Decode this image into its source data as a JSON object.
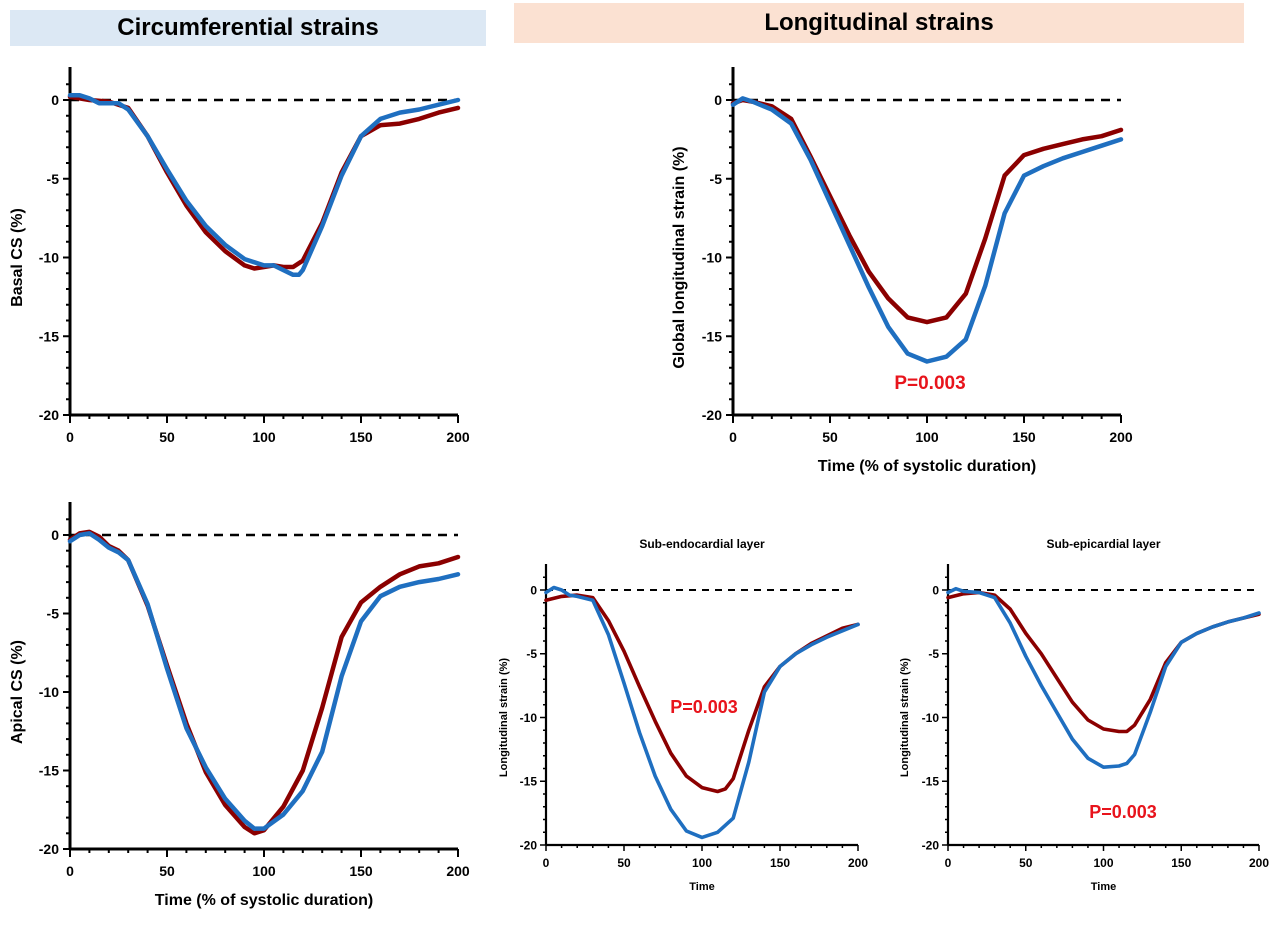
{
  "headers": {
    "circumferential": "Circumferential strains",
    "longitudinal": "Longitudinal strains"
  },
  "colors": {
    "red_series": "#8b0000",
    "blue_series": "#1f6fc0",
    "annotation": "#e8141c"
  },
  "chart_data": [
    {
      "id": "basal_cs",
      "type": "line",
      "title": "",
      "xlabel": "",
      "ylabel": "Basal CS (%)",
      "xlim": [
        0,
        200
      ],
      "ylim": [
        -20,
        0
      ],
      "xticks": [
        0,
        50,
        100,
        150,
        200
      ],
      "yticks": [
        0,
        -5,
        -10,
        -15,
        -20
      ],
      "series": [
        {
          "color": "#8b0000",
          "x": [
            0,
            10,
            20,
            30,
            40,
            50,
            60,
            70,
            80,
            90,
            95,
            100,
            105,
            110,
            115,
            120,
            130,
            140,
            150,
            160,
            170,
            180,
            190,
            200
          ],
          "y": [
            0.2,
            0,
            -0.1,
            -0.5,
            -2.3,
            -4.6,
            -6.7,
            -8.4,
            -9.6,
            -10.5,
            -10.7,
            -10.6,
            -10.5,
            -10.6,
            -10.6,
            -10.2,
            -7.8,
            -4.6,
            -2.3,
            -1.6,
            -1.5,
            -1.2,
            -0.8,
            -0.5
          ]
        },
        {
          "color": "#1f6fc0",
          "x": [
            0,
            5,
            10,
            15,
            20,
            25,
            30,
            40,
            50,
            60,
            70,
            80,
            90,
            100,
            105,
            110,
            115,
            118,
            120,
            130,
            140,
            150,
            160,
            170,
            180,
            190,
            200
          ],
          "y": [
            0.3,
            0.3,
            0.1,
            -0.2,
            -0.2,
            -0.2,
            -0.6,
            -2.3,
            -4.4,
            -6.4,
            -8.0,
            -9.2,
            -10.1,
            -10.5,
            -10.5,
            -10.8,
            -11.1,
            -11.1,
            -10.8,
            -8.0,
            -4.8,
            -2.3,
            -1.2,
            -0.8,
            -0.6,
            -0.3,
            0
          ]
        }
      ]
    },
    {
      "id": "apical_cs",
      "type": "line",
      "title": "",
      "xlabel": "Time (% of systolic duration)",
      "ylabel": "Apical CS (%)",
      "xlim": [
        0,
        200
      ],
      "ylim": [
        -20,
        0
      ],
      "xticks": [
        0,
        50,
        100,
        150,
        200
      ],
      "yticks": [
        0,
        -5,
        -10,
        -15,
        -20
      ],
      "series": [
        {
          "color": "#8b0000",
          "x": [
            0,
            5,
            10,
            15,
            20,
            25,
            30,
            40,
            50,
            60,
            70,
            80,
            90,
            95,
            100,
            110,
            120,
            130,
            140,
            150,
            160,
            170,
            180,
            190,
            200
          ],
          "y": [
            -0.3,
            0.1,
            0.2,
            -0.1,
            -0.7,
            -1.0,
            -1.6,
            -4.5,
            -8.3,
            -12.0,
            -15.1,
            -17.2,
            -18.6,
            -19.0,
            -18.8,
            -17.3,
            -15.0,
            -11.0,
            -6.5,
            -4.3,
            -3.3,
            -2.5,
            -2.0,
            -1.8,
            -1.4
          ]
        },
        {
          "color": "#1f6fc0",
          "x": [
            0,
            5,
            10,
            15,
            20,
            25,
            30,
            40,
            50,
            60,
            70,
            80,
            90,
            95,
            100,
            110,
            120,
            130,
            140,
            150,
            160,
            170,
            180,
            190,
            200
          ],
          "y": [
            -0.4,
            0,
            0.1,
            -0.3,
            -0.8,
            -1.1,
            -1.6,
            -4.4,
            -8.5,
            -12.3,
            -14.8,
            -16.8,
            -18.2,
            -18.7,
            -18.7,
            -17.8,
            -16.3,
            -13.8,
            -9.0,
            -5.5,
            -3.9,
            -3.3,
            -3.0,
            -2.8,
            -2.5
          ]
        }
      ]
    },
    {
      "id": "global_ls",
      "type": "line",
      "title": "",
      "xlabel": "Time (% of systolic duration)",
      "ylabel": "Global longitudinal strain (%)",
      "xlim": [
        0,
        200
      ],
      "ylim": [
        -20,
        0
      ],
      "xticks": [
        0,
        50,
        100,
        150,
        200
      ],
      "yticks": [
        0,
        -5,
        -10,
        -15,
        -20
      ],
      "annotation": "P=0.003",
      "series": [
        {
          "color": "#8b0000",
          "x": [
            0,
            5,
            10,
            20,
            30,
            40,
            50,
            60,
            70,
            80,
            90,
            100,
            110,
            120,
            130,
            140,
            150,
            160,
            170,
            180,
            190,
            200
          ],
          "y": [
            -0.2,
            0,
            -0.1,
            -0.4,
            -1.2,
            -3.6,
            -6.1,
            -8.6,
            -10.9,
            -12.6,
            -13.8,
            -14.1,
            -13.8,
            -12.3,
            -8.8,
            -4.8,
            -3.5,
            -3.1,
            -2.8,
            -2.5,
            -2.3,
            -1.9
          ]
        },
        {
          "color": "#1f6fc0",
          "x": [
            0,
            5,
            10,
            20,
            30,
            40,
            50,
            60,
            70,
            80,
            90,
            100,
            110,
            120,
            130,
            140,
            150,
            160,
            170,
            180,
            190,
            200
          ],
          "y": [
            -0.3,
            0.1,
            -0.1,
            -0.6,
            -1.5,
            -3.8,
            -6.5,
            -9.2,
            -11.9,
            -14.4,
            -16.1,
            -16.6,
            -16.3,
            -15.2,
            -11.8,
            -7.2,
            -4.8,
            -4.2,
            -3.7,
            -3.3,
            -2.9,
            -2.5
          ]
        }
      ]
    },
    {
      "id": "sub_endocardial",
      "type": "line",
      "title": "Sub-endocardial layer",
      "xlabel": "Time",
      "ylabel": "Longitudinal strain (%)",
      "xlim": [
        0,
        200
      ],
      "ylim": [
        -20,
        0
      ],
      "xticks": [
        0,
        50,
        100,
        150,
        200
      ],
      "yticks": [
        0,
        -5,
        -10,
        -15,
        -20
      ],
      "annotation": "P=0.003",
      "series": [
        {
          "color": "#8b0000",
          "x": [
            0,
            10,
            20,
            30,
            40,
            50,
            60,
            70,
            80,
            90,
            100,
            110,
            115,
            120,
            130,
            140,
            150,
            160,
            170,
            180,
            190,
            200
          ],
          "y": [
            -0.8,
            -0.5,
            -0.4,
            -0.6,
            -2.4,
            -4.8,
            -7.6,
            -10.3,
            -12.8,
            -14.6,
            -15.5,
            -15.8,
            -15.6,
            -14.8,
            -11.0,
            -7.6,
            -6.0,
            -5.0,
            -4.2,
            -3.6,
            -3.0,
            -2.7
          ]
        },
        {
          "color": "#1f6fc0",
          "x": [
            0,
            5,
            10,
            15,
            20,
            30,
            40,
            50,
            60,
            70,
            80,
            90,
            100,
            110,
            120,
            130,
            140,
            150,
            160,
            170,
            180,
            190,
            200
          ],
          "y": [
            -0.2,
            0.2,
            0,
            -0.4,
            -0.5,
            -0.8,
            -3.5,
            -7.3,
            -11.2,
            -14.6,
            -17.2,
            -18.9,
            -19.4,
            -19.0,
            -17.9,
            -13.5,
            -8.0,
            -6.0,
            -5.0,
            -4.3,
            -3.7,
            -3.2,
            -2.7
          ]
        }
      ]
    },
    {
      "id": "sub_epicardial",
      "type": "line",
      "title": "Sub-epicardial layer",
      "xlabel": "Time",
      "ylabel": "Longitudinal strain (%)",
      "xlim": [
        0,
        200
      ],
      "ylim": [
        -20,
        0
      ],
      "xticks": [
        0,
        50,
        100,
        150,
        200
      ],
      "yticks": [
        0,
        -5,
        -10,
        -15,
        -20
      ],
      "annotation": "P=0.003",
      "series": [
        {
          "color": "#8b0000",
          "x": [
            0,
            10,
            20,
            30,
            40,
            50,
            60,
            70,
            80,
            90,
            100,
            110,
            115,
            120,
            130,
            140,
            150,
            160,
            170,
            180,
            190,
            200
          ],
          "y": [
            -0.6,
            -0.3,
            -0.2,
            -0.4,
            -1.5,
            -3.4,
            -5.0,
            -6.9,
            -8.8,
            -10.2,
            -10.9,
            -11.1,
            -11.1,
            -10.6,
            -8.6,
            -5.7,
            -4.1,
            -3.4,
            -2.9,
            -2.5,
            -2.2,
            -1.9
          ]
        },
        {
          "color": "#1f6fc0",
          "x": [
            0,
            5,
            10,
            20,
            30,
            40,
            50,
            60,
            70,
            80,
            90,
            100,
            110,
            115,
            120,
            130,
            140,
            150,
            160,
            170,
            180,
            190,
            200
          ],
          "y": [
            -0.2,
            0.1,
            -0.1,
            -0.2,
            -0.6,
            -2.6,
            -5.2,
            -7.5,
            -9.6,
            -11.7,
            -13.2,
            -13.9,
            -13.8,
            -13.6,
            -12.9,
            -9.6,
            -6.0,
            -4.1,
            -3.4,
            -2.9,
            -2.5,
            -2.2,
            -1.8
          ]
        }
      ]
    }
  ]
}
